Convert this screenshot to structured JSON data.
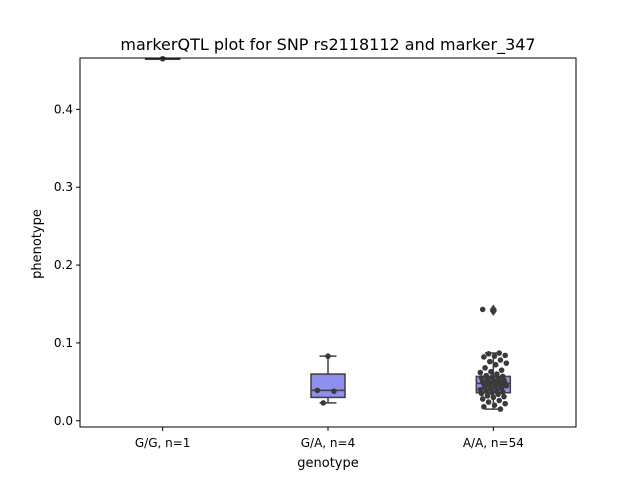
{
  "chart_data": {
    "type": "box",
    "title": "markerQTL plot for SNP rs2118112 and marker_347",
    "xlabel": "genotype",
    "ylabel": "phenotype",
    "ylim": [
      -0.008,
      0.466
    ],
    "yticks": [
      0.0,
      0.1,
      0.2,
      0.3,
      0.4
    ],
    "ytick_labels": [
      "0.0",
      "0.1",
      "0.2",
      "0.3",
      "0.4"
    ],
    "categories": [
      "G/G, n=1",
      "G/A, n=4",
      "A/A, n=54"
    ],
    "box_color": "#8f8ff0",
    "point_color": "#3a3a3a",
    "line_color": "#3f3f3f",
    "boxes": [
      {
        "category": "G/G, n=1",
        "q1": 0.465,
        "median": 0.465,
        "q3": 0.465,
        "whisker_low": 0.465,
        "whisker_high": 0.465,
        "outliers": []
      },
      {
        "category": "G/A, n=4",
        "q1": 0.03,
        "median": 0.039,
        "q3": 0.06,
        "whisker_low": 0.023,
        "whisker_high": 0.083,
        "outliers": []
      },
      {
        "category": "A/A, n=54",
        "q1": 0.036,
        "median": 0.048,
        "q3": 0.057,
        "whisker_low": 0.015,
        "whisker_high": 0.087,
        "outliers": [
          0.141,
          0.143
        ]
      }
    ],
    "points": [
      {
        "category": "G/G, n=1",
        "values": [
          0.465
        ]
      },
      {
        "category": "G/A, n=4",
        "values": [
          0.083,
          0.039,
          0.038,
          0.023
        ]
      },
      {
        "category": "A/A, n=54",
        "values": [
          0.141,
          0.143,
          0.087,
          0.086,
          0.084,
          0.083,
          0.082,
          0.078,
          0.076,
          0.074,
          0.072,
          0.068,
          0.065,
          0.063,
          0.062,
          0.06,
          0.058,
          0.057,
          0.056,
          0.055,
          0.054,
          0.053,
          0.052,
          0.051,
          0.05,
          0.05,
          0.049,
          0.048,
          0.048,
          0.047,
          0.046,
          0.045,
          0.045,
          0.044,
          0.043,
          0.042,
          0.041,
          0.04,
          0.039,
          0.038,
          0.037,
          0.036,
          0.035,
          0.034,
          0.032,
          0.031,
          0.03,
          0.028,
          0.026,
          0.024,
          0.022,
          0.02,
          0.018,
          0.015
        ]
      }
    ]
  }
}
